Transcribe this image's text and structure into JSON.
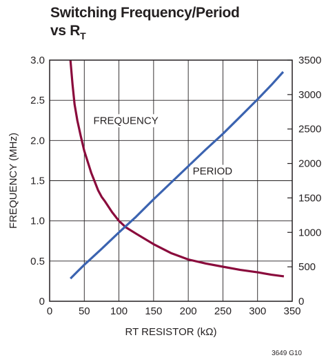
{
  "chart_data": {
    "type": "line",
    "title_line1": "Switching Frequency/Period",
    "title_line2_main": "vs R",
    "title_line2_sub": "T",
    "xlabel": "RT RESISTOR (kΩ)",
    "ylabel_left": "FREQUENCY (MHz)",
    "xlim": [
      0,
      350
    ],
    "ylim_left": [
      0,
      3.0
    ],
    "ylim_right": [
      0,
      3500
    ],
    "x_ticks": [
      "0",
      "50",
      "100",
      "150",
      "200",
      "250",
      "300",
      "350"
    ],
    "y_left_ticks": [
      "0",
      "0.5",
      "1.0",
      "1.5",
      "2.0",
      "2.5",
      "3.0"
    ],
    "y_right_ticks": [
      "0",
      "500",
      "1000",
      "1500",
      "2000",
      "2500",
      "3000",
      "3500"
    ],
    "grid": true,
    "series": [
      {
        "name": "FREQUENCY",
        "axis": "left",
        "color": "#8a0b3c",
        "x": [
          30,
          33,
          36,
          40,
          45,
          50,
          60,
          70,
          75,
          80,
          90,
          100,
          110,
          125,
          150,
          175,
          200,
          225,
          250,
          275,
          300,
          320,
          338
        ],
        "y": [
          3.0,
          2.7,
          2.45,
          2.25,
          2.05,
          1.87,
          1.6,
          1.38,
          1.3,
          1.24,
          1.11,
          1.0,
          0.92,
          0.84,
          0.71,
          0.6,
          0.52,
          0.47,
          0.43,
          0.39,
          0.36,
          0.33,
          0.31
        ]
      },
      {
        "name": "PERIOD",
        "axis": "right",
        "color": "#3b63b0",
        "x": [
          30,
          40,
          50,
          75,
          100,
          125,
          150,
          175,
          200,
          225,
          250,
          275,
          300,
          320,
          337
        ],
        "y": [
          330,
          430,
          530,
          760,
          1000,
          1230,
          1480,
          1720,
          1960,
          2200,
          2430,
          2680,
          2930,
          3140,
          3330
        ]
      }
    ],
    "annotations": [
      {
        "text": "FREQUENCY",
        "x": 110,
        "y_left": 2.25
      },
      {
        "text": "PERIOD",
        "x": 235,
        "y_left": 1.62
      }
    ]
  },
  "figure_code": "3649 G10"
}
